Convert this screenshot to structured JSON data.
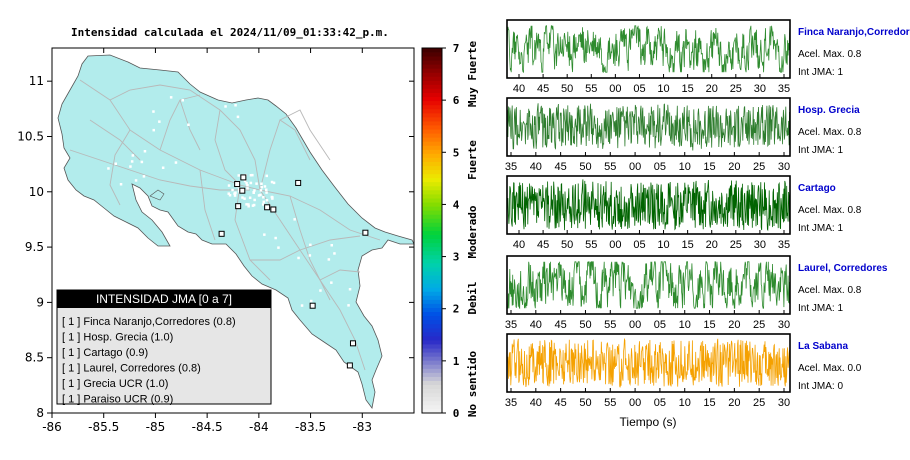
{
  "map": {
    "title": "Intensidad calculada el 2024/11/09_01:33:42_p.m.",
    "x_ticks": [
      "-86",
      "-85.5",
      "-85",
      "-84.5",
      "-84",
      "-83.5",
      "-83"
    ],
    "y_ticks": [
      "11",
      "10.5",
      "10",
      "9.5",
      "9",
      "8.5",
      "8"
    ],
    "xlim": [
      -86,
      -82.5
    ],
    "ylim": [
      8,
      11.3
    ],
    "land_color": "#b2ecec",
    "legend": {
      "title": "INTENSIDAD JMA [0 a 7]",
      "items": [
        "[ 1 ]  Finca Naranjo,Corredores (0.8)",
        "[ 1 ]  Hosp. Grecia (1.0)",
        "[ 1 ]  Cartago (0.9)",
        "[ 1 ]  Laurel, Corredores (0.8)",
        "[ 1 ]  Grecia UCR (1.0)",
        "[ 1 ]  Paraiso UCR (0.9)"
      ]
    },
    "stations": [
      {
        "lon": -84.21,
        "lat": 10.07
      },
      {
        "lon": -84.16,
        "lat": 10.01
      },
      {
        "lon": -84.15,
        "lat": 10.13
      },
      {
        "lon": -84.2,
        "lat": 9.87
      },
      {
        "lon": -83.92,
        "lat": 9.86
      },
      {
        "lon": -83.86,
        "lat": 9.84
      },
      {
        "lon": -83.62,
        "lat": 10.08
      },
      {
        "lon": -84.36,
        "lat": 9.62
      },
      {
        "lon": -82.97,
        "lat": 9.63
      },
      {
        "lon": -83.48,
        "lat": 8.97
      },
      {
        "lon": -83.09,
        "lat": 8.63
      },
      {
        "lon": -83.12,
        "lat": 8.43
      }
    ]
  },
  "colorbar": {
    "ticks": [
      "0",
      "1",
      "2",
      "3",
      "4",
      "5",
      "6",
      "7"
    ],
    "categories": [
      "No sentido",
      "Debil",
      "Moderado",
      "Fuerte",
      "Muy Fuerte"
    ]
  },
  "chart_data": [
    {
      "type": "line",
      "name": "Finca Naranjo,Corredores",
      "accel_label": "Acel. Max. 0.8",
      "int_label": "Int JMA: 1",
      "x_ticks": [
        "40",
        "45",
        "50",
        "55",
        "00",
        "05",
        "10",
        "15",
        "20",
        "25",
        "30",
        "35"
      ],
      "color": "#2e8b2e",
      "seed": 11,
      "noise_freq": 0.35,
      "amplitude": 0.8
    },
    {
      "type": "line",
      "name": "Hosp. Grecia",
      "accel_label": "Acel. Max. 0.8",
      "int_label": "Int JMA: 1",
      "x_ticks": [
        "35",
        "40",
        "45",
        "50",
        "55",
        "00",
        "05",
        "10",
        "15",
        "20",
        "25",
        "30"
      ],
      "color": "#2e7d2e",
      "seed": 23,
      "noise_freq": 0.9,
      "amplitude": 0.85
    },
    {
      "type": "line",
      "name": "Cartago",
      "accel_label": "Acel. Max. 0.8",
      "int_label": "Int JMA: 1",
      "x_ticks": [
        "40",
        "45",
        "50",
        "55",
        "00",
        "05",
        "10",
        "15",
        "20",
        "25",
        "30",
        "35"
      ],
      "color": "#006400",
      "seed": 37,
      "noise_freq": 0.95,
      "amplitude": 0.9
    },
    {
      "type": "line",
      "name": "Laurel, Corredores",
      "accel_label": "Acel. Max. 0.8",
      "int_label": "Int JMA: 1",
      "x_ticks": [
        "35",
        "40",
        "45",
        "50",
        "55",
        "00",
        "05",
        "10",
        "15",
        "20",
        "25",
        "30"
      ],
      "color": "#2e8b2e",
      "seed": 53,
      "noise_freq": 0.4,
      "amplitude": 0.8
    },
    {
      "type": "line",
      "name": "La Sabana",
      "accel_label": "Acel. Max. 0.0",
      "int_label": "Int JMA: 0",
      "x_ticks": [
        "35",
        "40",
        "45",
        "50",
        "55",
        "00",
        "05",
        "10",
        "15",
        "20",
        "25",
        "30"
      ],
      "color": "#f5a100",
      "seed": 71,
      "noise_freq": 0.95,
      "amplitude": 0.85
    }
  ],
  "waveform_xlabel": "Tiempo (s)",
  "station_label_color": "#0000cc"
}
